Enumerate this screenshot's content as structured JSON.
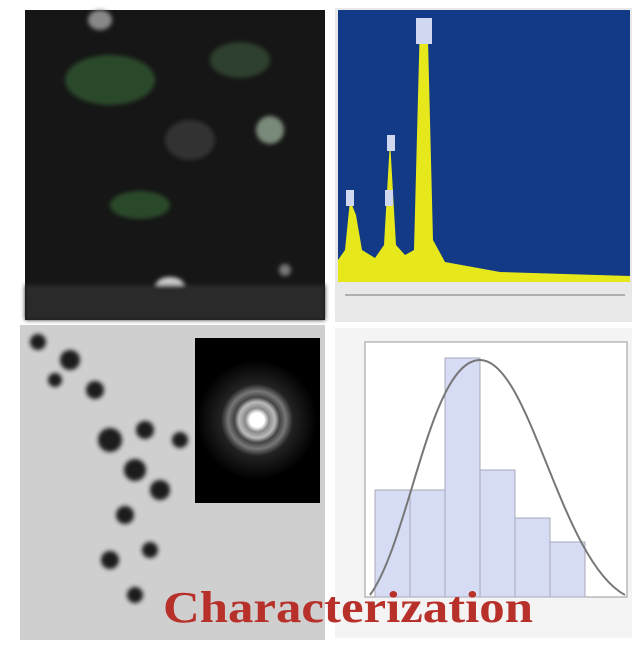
{
  "caption": "Characterization"
}
